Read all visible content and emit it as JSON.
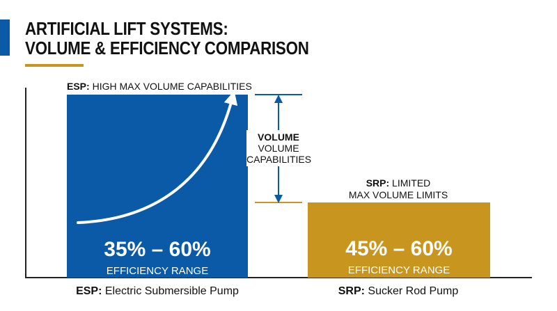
{
  "header": {
    "title_line1": "ARTIFICIAL LIFT SYSTEMS:",
    "title_line2": "VOLUME & EFFICIENCY COMPARISON"
  },
  "colors": {
    "esp_blue": "#0a5aa8",
    "srp_gold": "#c8961e",
    "accent_gold": "#c8961e",
    "axis": "#222222"
  },
  "annotation": {
    "volume_bold": "VOLUME",
    "volume_line2": "VOLUME",
    "volume_line3": "CAPABILITIES",
    "arrow_icon": "double-headed-vertical-arrow",
    "growth_icon": "curved-up-arrow"
  },
  "chart_data": {
    "type": "bar",
    "title": "ARTIFICIAL LIFT SYSTEMS: VOLUME & EFFICIENCY COMPARISON",
    "categories": [
      "ESP: Electric Submersible Pump",
      "SRP: Sucker Rod Pump"
    ],
    "bars": [
      {
        "abbr": "ESP:",
        "name": "Electric Submersible Pump",
        "caption_abbr": "ESP:",
        "caption_line1": "HIGH MAX VOLUME CAPABILITIES",
        "caption_line2": "",
        "efficiency": "35% – 60%",
        "efficiency_label": "EFFICIENCY RANGE",
        "relative_max_volume": 1.0,
        "color": "#0a5aa8"
      },
      {
        "abbr": "SRP:",
        "name": "Sucker Rod Pump",
        "caption_abbr": "SRP:",
        "caption_line1": "LIMITED",
        "caption_line2": "MAX VOLUME LIMITS",
        "efficiency": "45% – 60%",
        "efficiency_label": "EFFICIENCY RANGE",
        "relative_max_volume": 0.41,
        "color": "#c8961e"
      }
    ],
    "xlabel": "",
    "ylabel": "",
    "grid": false
  }
}
